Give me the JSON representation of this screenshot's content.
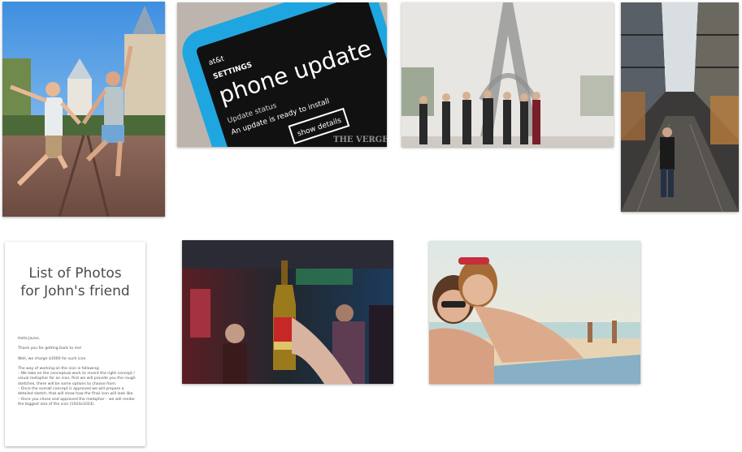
{
  "gallery": {
    "photos": [
      {
        "name": "photo-disney-jump",
        "alt": ""
      },
      {
        "name": "photo-phone-update",
        "alt": ""
      },
      {
        "name": "photo-eiffel-tower",
        "alt": ""
      },
      {
        "name": "photo-mall-corridor",
        "alt": ""
      },
      {
        "name": "photo-bar-bottle",
        "alt": ""
      },
      {
        "name": "photo-beach-girls",
        "alt": ""
      }
    ],
    "phone": {
      "carrier": "at&t",
      "settings": "SETTINGS",
      "title": "phone update",
      "status_label": "Update status",
      "status_text": "An update is ready to install",
      "button": "show details",
      "watermark": "THE VERGE"
    },
    "document": {
      "title": "List of Photos for John's friend",
      "paragraphs": [
        "Hello Javier,",
        "Thank you for getting back to me!",
        "Well, we charge $3000 for such icon.",
        "The way of working on the icon is following:",
        "– We take on the conceptual work to invent the right concept / visual metaphor for an icon, first we will provide you the rough sketches, there will be some options to choose from.",
        "– Once the overall concept is approved we will prepare a detailed sketch, that will show how the final icon will look like.",
        "– Once you chose and approved the metaphor – we will render the biggest size of the icon (1024x1024)."
      ]
    }
  },
  "colors": {
    "background": "#ffffff",
    "doc_title": "#4b4b4b",
    "phone_blue": "#1fa6e0"
  }
}
